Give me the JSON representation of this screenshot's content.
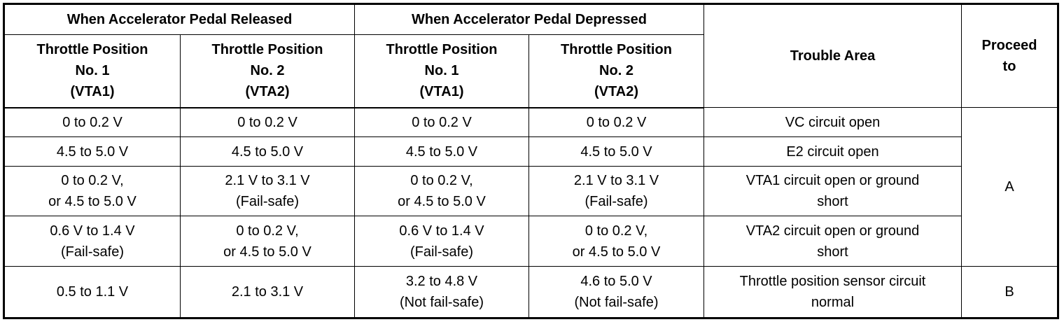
{
  "header": {
    "released": "When Accelerator Pedal Released",
    "depressed": "When Accelerator Pedal Depressed",
    "tp1": [
      "Throttle Position",
      "No. 1",
      "(VTA1)"
    ],
    "tp2": [
      "Throttle Position",
      "No. 2",
      "(VTA2)"
    ],
    "trouble_area": "Trouble Area",
    "proceed_to": [
      "Proceed",
      "to"
    ]
  },
  "rows": [
    {
      "r1": [
        "0 to 0.2 V"
      ],
      "r2": [
        "0 to 0.2 V"
      ],
      "d1": [
        "0 to 0.2 V"
      ],
      "d2": [
        "0 to 0.2 V"
      ],
      "area": [
        "VC circuit open"
      ]
    },
    {
      "r1": [
        "4.5 to 5.0 V"
      ],
      "r2": [
        "4.5 to 5.0 V"
      ],
      "d1": [
        "4.5 to 5.0 V"
      ],
      "d2": [
        "4.5 to 5.0 V"
      ],
      "area": [
        "E2 circuit open"
      ]
    },
    {
      "r1": [
        "0 to 0.2 V,",
        "or 4.5 to 5.0 V"
      ],
      "r2": [
        "2.1 V to 3.1 V",
        "(Fail-safe)"
      ],
      "d1": [
        "0 to 0.2 V,",
        "or 4.5 to 5.0 V"
      ],
      "d2": [
        "2.1 V to 3.1 V",
        "(Fail-safe)"
      ],
      "area": [
        "VTA1 circuit open or ground",
        "short"
      ]
    },
    {
      "r1": [
        "0.6 V to 1.4 V",
        "(Fail-safe)"
      ],
      "r2": [
        "0 to 0.2 V,",
        "or 4.5 to 5.0 V"
      ],
      "d1": [
        "0.6 V to 1.4 V",
        "(Fail-safe)"
      ],
      "d2": [
        "0 to 0.2 V,",
        "or 4.5 to 5.0 V"
      ],
      "area": [
        "VTA2 circuit open or ground",
        "short"
      ]
    },
    {
      "r1": [
        "0.5 to 1.1 V"
      ],
      "r2": [
        "2.1 to 3.1 V"
      ],
      "d1": [
        "3.2 to 4.8 V",
        "(Not fail-safe)"
      ],
      "d2": [
        "4.6 to 5.0 V",
        "(Not fail-safe)"
      ],
      "area": [
        "Throttle position sensor circuit",
        "normal"
      ]
    }
  ],
  "proceed": {
    "a": "A",
    "b": "B"
  }
}
